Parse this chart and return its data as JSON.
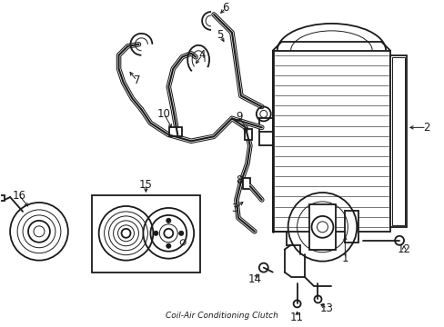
{
  "bg_color": "#ffffff",
  "line_color": "#1a1a1a",
  "lw": 1.3,
  "tlw": 0.7,
  "fs": 8.5,
  "figsize": [
    4.89,
    3.6
  ],
  "dpi": 100
}
